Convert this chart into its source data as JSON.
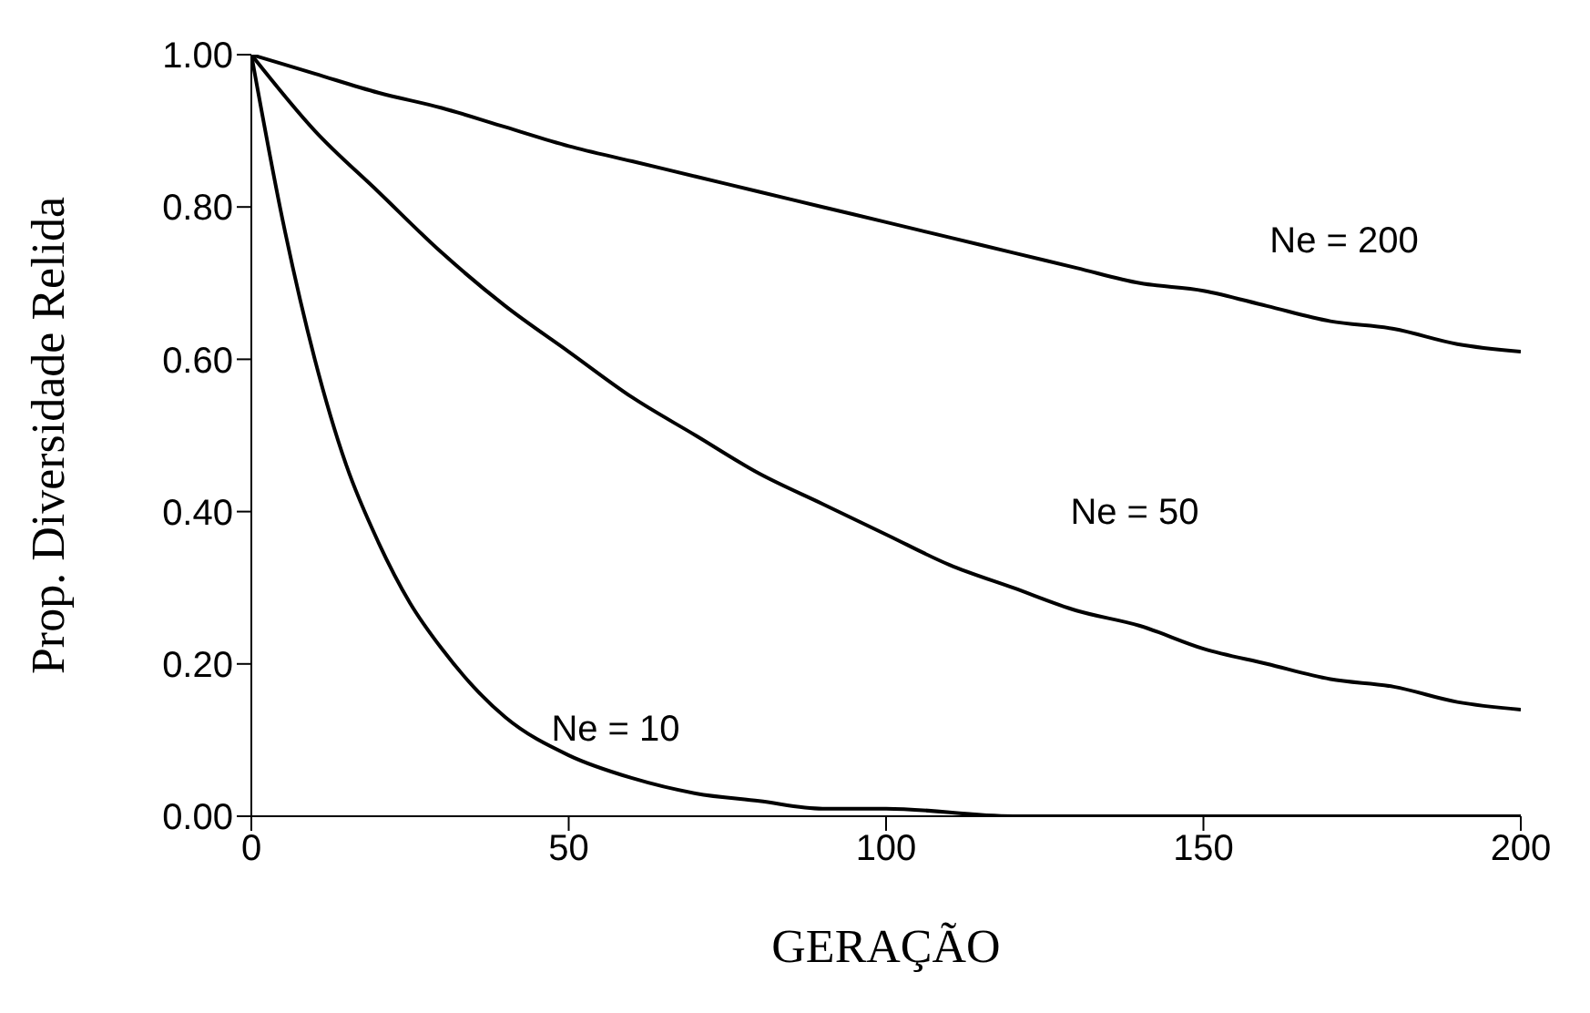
{
  "chart_data": {
    "type": "line",
    "xlabel": "GERAÇÃO",
    "ylabel": "Prop. Diversidade Relida",
    "xlim": [
      0,
      200
    ],
    "xticks": [
      0,
      50,
      100,
      150,
      200
    ],
    "ylim": [
      0,
      1
    ],
    "yticks": [
      {
        "value": 0,
        "label": "0.00"
      },
      {
        "value": 0.2,
        "label": "0.20"
      },
      {
        "value": 0.4,
        "label": "0.40"
      },
      {
        "value": 0.6,
        "label": "0.60"
      },
      {
        "value": 0.8,
        "label": "0.80"
      },
      {
        "value": 1,
        "label": "1.00"
      }
    ],
    "grid": false,
    "legend": false,
    "marker": "none",
    "line_style": "solid",
    "series": [
      {
        "color": "#000000",
        "x": [
          0,
          10,
          20,
          30,
          40,
          50,
          60,
          70,
          80,
          90,
          100,
          110,
          120,
          130,
          140,
          150,
          160,
          170,
          180,
          190,
          200
        ],
        "values": [
          1,
          0.975,
          0.95,
          0.93,
          0.905,
          0.88,
          0.86,
          0.84,
          0.82,
          0.8,
          0.78,
          0.76,
          0.74,
          0.72,
          0.7,
          0.69,
          0.67,
          0.65,
          0.64,
          0.62,
          0.61
        ]
      },
      {
        "color": "#000000",
        "x": [
          0,
          10,
          20,
          30,
          40,
          50,
          60,
          70,
          80,
          90,
          100,
          110,
          120,
          130,
          140,
          150,
          160,
          170,
          180,
          190,
          200
        ],
        "values": [
          1,
          0.9,
          0.82,
          0.74,
          0.67,
          0.61,
          0.55,
          0.5,
          0.45,
          0.41,
          0.37,
          0.33,
          0.3,
          0.27,
          0.25,
          0.22,
          0.2,
          0.18,
          0.17,
          0.15,
          0.14
        ]
      },
      {
        "color": "#000000",
        "x": [
          0,
          5,
          10,
          15,
          20,
          25,
          30,
          35,
          40,
          50,
          60,
          70,
          80,
          90,
          100,
          120,
          140,
          160,
          180,
          200
        ],
        "values": [
          1,
          0.78,
          0.6,
          0.46,
          0.36,
          0.28,
          0.22,
          0.17,
          0.13,
          0.08,
          0.05,
          0.03,
          0.02,
          0.01,
          0.01,
          0,
          0,
          0,
          0,
          0
        ]
      }
    ],
    "annotations": [
      "Ne = 200",
      "Ne = 50",
      "Ne = 10"
    ]
  }
}
